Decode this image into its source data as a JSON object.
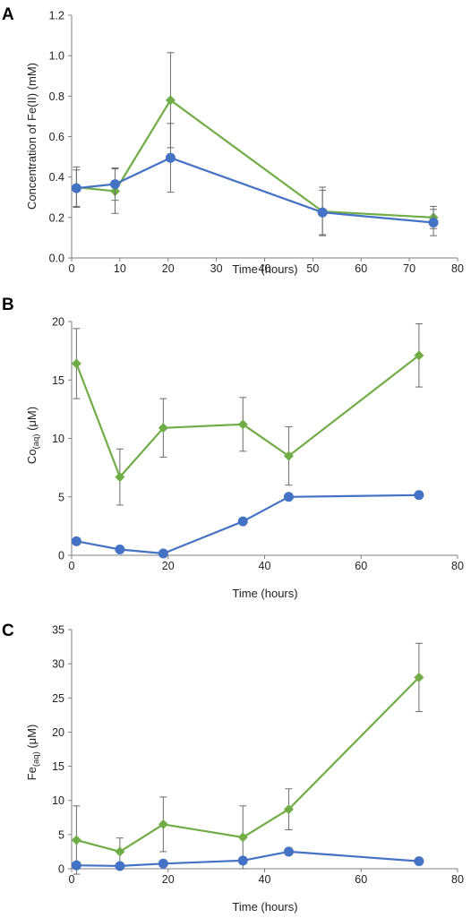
{
  "colors": {
    "series_green": "#70ad47",
    "series_blue": "#4472c4",
    "error_bar": "#6b6b6b"
  },
  "chart_data": [
    {
      "panel": "A",
      "type": "line",
      "xlabel": "Time (hours)",
      "ylabel": "Concentration of Fe(II) (mM)",
      "xlim": [
        0,
        80
      ],
      "ylim": [
        0,
        1.2
      ],
      "xticks": [
        "0",
        "10",
        "20",
        "30",
        "40",
        "50",
        "60",
        "70",
        "80"
      ],
      "yticks": [
        "0.0",
        "0.2",
        "0.4",
        "0.6",
        "0.8",
        "1.0",
        "1.2"
      ],
      "grid": false,
      "series": [
        {
          "marker": "diamond",
          "color": "#70ad47",
          "x": [
            1,
            9,
            20.5,
            52,
            75
          ],
          "y": [
            0.35,
            0.33,
            0.78,
            0.23,
            0.2
          ],
          "err": [
            0.1,
            0.11,
            0.235,
            0.12,
            0.055
          ]
        },
        {
          "marker": "circle",
          "color": "#4472c4",
          "x": [
            1,
            9,
            20.5,
            52,
            75
          ],
          "y": [
            0.345,
            0.365,
            0.495,
            0.225,
            0.175
          ],
          "err": [
            0.09,
            0.08,
            0.17,
            0.11,
            0.065
          ]
        }
      ]
    },
    {
      "panel": "B",
      "type": "line",
      "xlabel": "Time (hours)",
      "ylabel_main": "Co",
      "ylabel_sub": "(aq)",
      "ylabel_tail": " (μM)",
      "xlim": [
        0,
        80
      ],
      "ylim": [
        0,
        20
      ],
      "xticks": [
        "0",
        "20",
        "40",
        "60",
        "80"
      ],
      "yticks": [
        "0",
        "5",
        "10",
        "15",
        "20"
      ],
      "grid": false,
      "series": [
        {
          "marker": "diamond",
          "color": "#70ad47",
          "x": [
            1,
            10,
            19,
            35.5,
            45,
            72
          ],
          "y": [
            16.4,
            6.7,
            10.9,
            11.2,
            8.5,
            17.1
          ],
          "err": [
            3.0,
            2.4,
            2.5,
            2.3,
            2.5,
            2.7
          ]
        },
        {
          "marker": "circle",
          "color": "#4472c4",
          "x": [
            1,
            10,
            19,
            35.5,
            45,
            72
          ],
          "y": [
            1.2,
            0.5,
            0.15,
            2.9,
            5.0,
            5.15
          ],
          "err": [
            0,
            0,
            0,
            0,
            0,
            0
          ]
        }
      ]
    },
    {
      "panel": "C",
      "type": "line",
      "xlabel": "Time (hours)",
      "ylabel_main": "Fe",
      "ylabel_sub": "(aq)",
      "ylabel_tail": " (μM)",
      "xlim": [
        0,
        80
      ],
      "ylim": [
        0,
        35
      ],
      "xticks": [
        "0",
        "20",
        "40",
        "60",
        "80"
      ],
      "yticks": [
        "0",
        "5",
        "10",
        "15",
        "20",
        "25",
        "30",
        "35"
      ],
      "grid": false,
      "series": [
        {
          "marker": "diamond",
          "color": "#70ad47",
          "x": [
            1,
            10,
            19,
            35.5,
            45,
            72
          ],
          "y": [
            4.2,
            2.5,
            6.5,
            4.6,
            8.7,
            28.0
          ],
          "err": [
            5.0,
            2.0,
            4.0,
            4.6,
            3.0,
            5.0
          ]
        },
        {
          "marker": "circle",
          "color": "#4472c4",
          "x": [
            1,
            10,
            19,
            35.5,
            45,
            72
          ],
          "y": [
            0.5,
            0.4,
            0.75,
            1.2,
            2.5,
            1.1
          ],
          "err": [
            0,
            0,
            0,
            0,
            0,
            0
          ]
        }
      ]
    }
  ]
}
